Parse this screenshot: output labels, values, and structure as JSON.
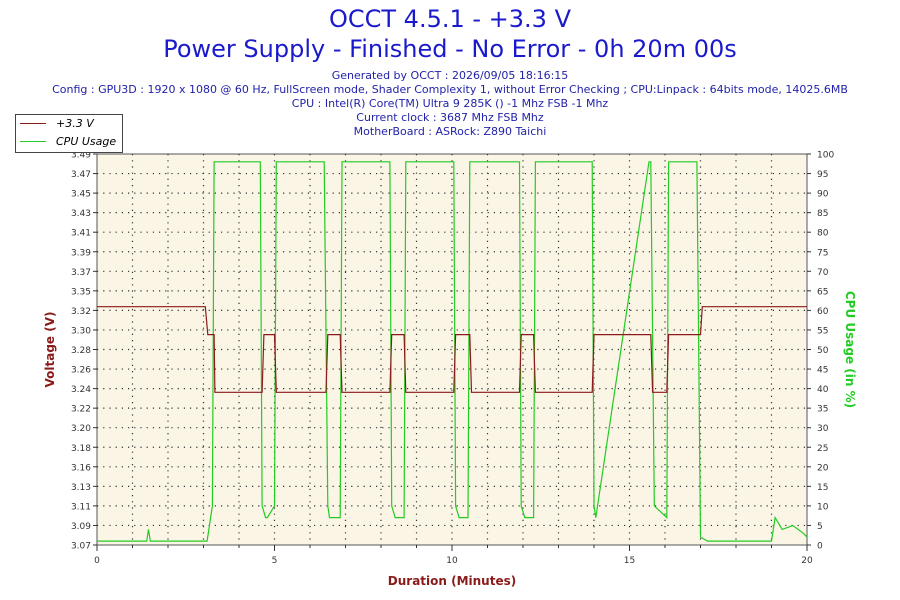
{
  "header": {
    "title_line1": "OCCT 4.5.1 - +3.3 V",
    "title_line2": "Power Supply - Finished - No Error - 0h 20m 00s",
    "generated": "Generated by OCCT : 2026/09/05 18:16:15",
    "config": "Config : GPU3D : 1920 x 1080 @ 60 Hz, FullScreen mode, Shader Complexity 1, without Error Checking ; CPU:Linpack : 64bits mode, 14025.6MB",
    "cpu": "CPU : Intel(R) Core(TM) Ultra 9 285K () -1 Mhz FSB -1 Mhz",
    "clock": "Current clock : 3687 Mhz FSB  Mhz",
    "motherboard": "MotherBoard : ASRock: Z890 Taichi"
  },
  "colors": {
    "voltage": "#8b1a1a",
    "cpu": "#22cc22",
    "plot_bg": "#fbf5e6",
    "grid": "#333333"
  },
  "chart_data": {
    "type": "line",
    "xlabel": "Duration (Minutes)",
    "ylabel_left": "Voltage (V)",
    "ylabel_right": "CPU Usage (in %)",
    "xlim": [
      0,
      20
    ],
    "x_ticks": [
      0,
      5,
      10,
      15,
      20
    ],
    "ylim_left": [
      3.07,
      3.49
    ],
    "y_ticks_left": [
      "3.07",
      "3.09",
      "3.11",
      "3.13",
      "3.16",
      "3.18",
      "3.20",
      "3.22",
      "3.24",
      "3.26",
      "3.28",
      "3.30",
      "3.32",
      "3.35",
      "3.37",
      "3.39",
      "3.41",
      "3.43",
      "3.45",
      "3.47",
      "3.49"
    ],
    "ylim_right": [
      0,
      100
    ],
    "y_ticks_right": [
      0,
      5,
      10,
      15,
      20,
      25,
      30,
      35,
      40,
      45,
      50,
      55,
      60,
      65,
      70,
      75,
      80,
      85,
      90,
      95,
      100
    ],
    "grid": true,
    "legend_position": "top-left",
    "series": [
      {
        "name": "+3.3 V",
        "axis": "left",
        "x": [
          0,
          3.05,
          3.12,
          3.3,
          3.32,
          4.65,
          4.7,
          5.0,
          5.05,
          6.45,
          6.5,
          6.85,
          6.9,
          8.25,
          8.3,
          8.65,
          8.7,
          10.05,
          10.1,
          10.5,
          10.55,
          11.9,
          11.95,
          12.3,
          12.35,
          13.95,
          14.0,
          15.6,
          15.65,
          16.05,
          16.1,
          17.0,
          17.05,
          20
        ],
        "y": [
          3.326,
          3.326,
          3.296,
          3.296,
          3.234,
          3.234,
          3.296,
          3.296,
          3.234,
          3.234,
          3.296,
          3.296,
          3.234,
          3.234,
          3.296,
          3.296,
          3.234,
          3.234,
          3.296,
          3.296,
          3.234,
          3.234,
          3.296,
          3.296,
          3.234,
          3.234,
          3.296,
          3.296,
          3.234,
          3.234,
          3.296,
          3.296,
          3.326,
          3.326
        ]
      },
      {
        "name": "CPU Usage",
        "axis": "right",
        "x": [
          0,
          1.0,
          1.4,
          1.45,
          1.5,
          2.5,
          3.1,
          3.2,
          3.25,
          3.3,
          4.6,
          4.65,
          4.75,
          4.8,
          5.0,
          5.05,
          6.4,
          6.5,
          6.55,
          6.85,
          6.9,
          8.25,
          8.3,
          8.4,
          8.65,
          8.7,
          10.05,
          10.1,
          10.2,
          10.45,
          10.5,
          11.9,
          11.95,
          12.05,
          12.3,
          12.35,
          13.95,
          14.0,
          14.05,
          15.55,
          15.6,
          15.7,
          16.05,
          16.1,
          16.9,
          17.0,
          17.2,
          18.5,
          19.0,
          19.1,
          19.3,
          19.6,
          19.9,
          20
        ],
        "y": [
          1,
          1,
          1,
          4,
          1,
          1,
          1,
          7,
          10,
          98,
          98,
          10,
          7,
          7,
          10,
          98,
          98,
          10,
          7,
          7,
          98,
          98,
          10,
          7,
          7,
          98,
          98,
          10,
          7,
          7,
          98,
          98,
          10,
          7,
          7,
          98,
          98,
          10,
          7,
          98,
          98,
          10,
          7,
          98,
          98,
          2,
          1,
          1,
          1,
          7,
          4,
          5,
          3,
          2
        ]
      }
    ]
  }
}
